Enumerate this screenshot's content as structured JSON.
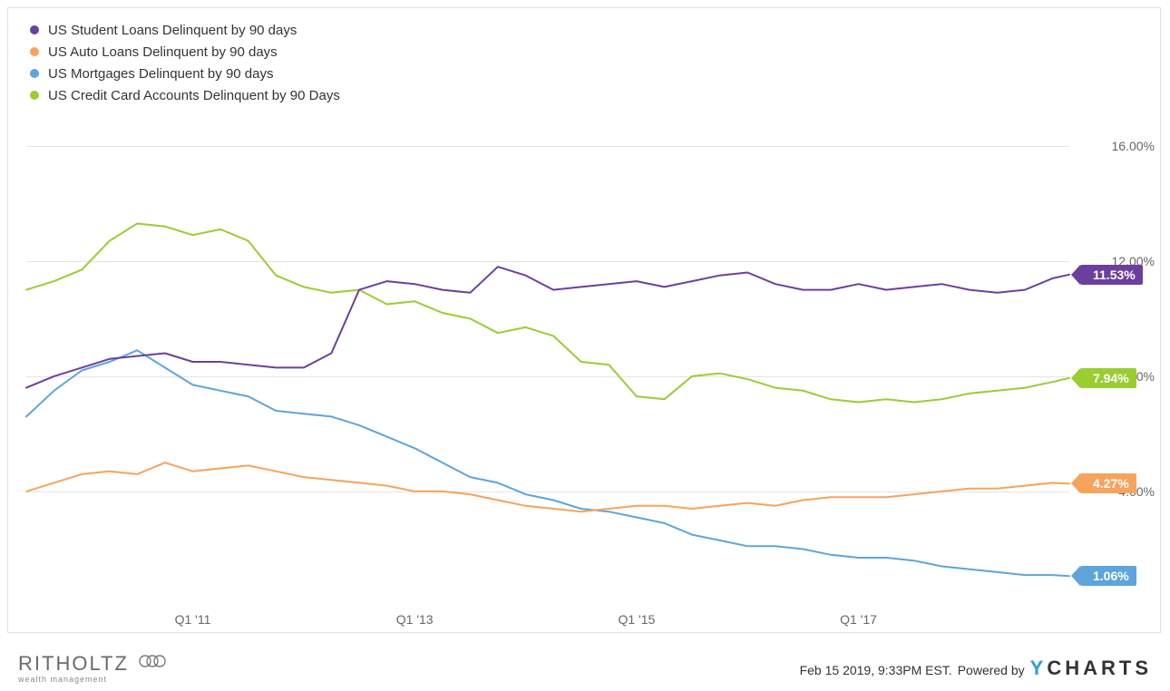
{
  "chart": {
    "type": "line",
    "background_color": "#ffffff",
    "grid_color": "#e5e5e5",
    "border_color": "#e0e0e0",
    "axis_text_color": "#666666",
    "axis_fontsize": 14,
    "legend_fontsize": 15,
    "line_width": 2,
    "ylim": [
      0,
      17
    ],
    "y_ticks": [
      4.0,
      8.0,
      12.0,
      16.0
    ],
    "y_tick_labels": [
      "4.00%",
      "8.00%",
      "12.00%",
      "16.00%"
    ],
    "x_ticks": [
      2011.0,
      2013.0,
      2015.0,
      2017.0
    ],
    "x_tick_labels": [
      "Q1 '11",
      "Q1 '13",
      "Q1 '15",
      "Q1 '17"
    ],
    "xlim": [
      2009.5,
      2018.9
    ],
    "legend": [
      {
        "label": "US Student Loans Delinquent by 90 days",
        "color": "#6b3fa0"
      },
      {
        "label": "US Auto Loans Delinquent by 90 days",
        "color": "#f6a35c"
      },
      {
        "label": "US Mortgages Delinquent by 90 days",
        "color": "#5da5da"
      },
      {
        "label": "US Credit Card Accounts Delinquent by 90 Days",
        "color": "#9acd32"
      }
    ],
    "end_labels": [
      {
        "text": "11.53%",
        "y": 11.53,
        "bg": "#6b3fa0"
      },
      {
        "text": "7.94%",
        "y": 7.94,
        "bg": "#9acd32"
      },
      {
        "text": "4.27%",
        "y": 4.27,
        "bg": "#f6a35c"
      },
      {
        "text": "1.06%",
        "y": 1.06,
        "bg": "#5da5da"
      }
    ],
    "series": {
      "x": [
        2009.5,
        2009.75,
        2010.0,
        2010.25,
        2010.5,
        2010.75,
        2011.0,
        2011.25,
        2011.5,
        2011.75,
        2012.0,
        2012.25,
        2012.5,
        2012.75,
        2013.0,
        2013.25,
        2013.5,
        2013.75,
        2014.0,
        2014.25,
        2014.5,
        2014.75,
        2015.0,
        2015.25,
        2015.5,
        2015.75,
        2016.0,
        2016.25,
        2016.5,
        2016.75,
        2017.0,
        2017.25,
        2017.5,
        2017.75,
        2018.0,
        2018.25,
        2018.5,
        2018.75,
        2018.9
      ],
      "student": [
        7.6,
        8.0,
        8.3,
        8.6,
        8.7,
        8.8,
        8.5,
        8.5,
        8.4,
        8.3,
        8.3,
        8.8,
        11.0,
        11.3,
        11.2,
        11.0,
        10.9,
        11.8,
        11.5,
        11.0,
        11.1,
        11.2,
        11.3,
        11.1,
        11.3,
        11.5,
        11.6,
        11.2,
        11.0,
        11.0,
        11.2,
        11.0,
        11.1,
        11.2,
        11.0,
        10.9,
        11.0,
        11.4,
        11.53
      ],
      "auto": [
        4.0,
        4.3,
        4.6,
        4.7,
        4.6,
        5.0,
        4.7,
        4.8,
        4.9,
        4.7,
        4.5,
        4.4,
        4.3,
        4.2,
        4.0,
        4.0,
        3.9,
        3.7,
        3.5,
        3.4,
        3.3,
        3.4,
        3.5,
        3.5,
        3.4,
        3.5,
        3.6,
        3.5,
        3.7,
        3.8,
        3.8,
        3.8,
        3.9,
        4.0,
        4.1,
        4.1,
        4.2,
        4.3,
        4.27
      ],
      "mortgage": [
        6.6,
        7.5,
        8.2,
        8.5,
        8.9,
        8.3,
        7.7,
        7.5,
        7.3,
        6.8,
        6.7,
        6.6,
        6.3,
        5.9,
        5.5,
        5.0,
        4.5,
        4.3,
        3.9,
        3.7,
        3.4,
        3.3,
        3.1,
        2.9,
        2.5,
        2.3,
        2.1,
        2.1,
        2.0,
        1.8,
        1.7,
        1.7,
        1.6,
        1.4,
        1.3,
        1.2,
        1.1,
        1.1,
        1.06
      ],
      "creditcard": [
        11.0,
        11.3,
        11.7,
        12.7,
        13.3,
        13.2,
        12.9,
        13.1,
        12.7,
        11.5,
        11.1,
        10.9,
        11.0,
        10.5,
        10.6,
        10.2,
        10.0,
        9.5,
        9.7,
        9.4,
        8.5,
        8.4,
        7.3,
        7.2,
        8.0,
        8.1,
        7.9,
        7.6,
        7.5,
        7.2,
        7.1,
        7.2,
        7.1,
        7.2,
        7.4,
        7.5,
        7.6,
        7.8,
        7.94
      ]
    }
  },
  "footer": {
    "timestamp": "Feb 15 2019, 9:33PM EST.",
    "powered_by": "Powered by",
    "ycharts_y": "Y",
    "ycharts_rest": "CHARTS",
    "ritholtz_name": "RITHOLTZ",
    "ritholtz_sub": "wealth management"
  }
}
